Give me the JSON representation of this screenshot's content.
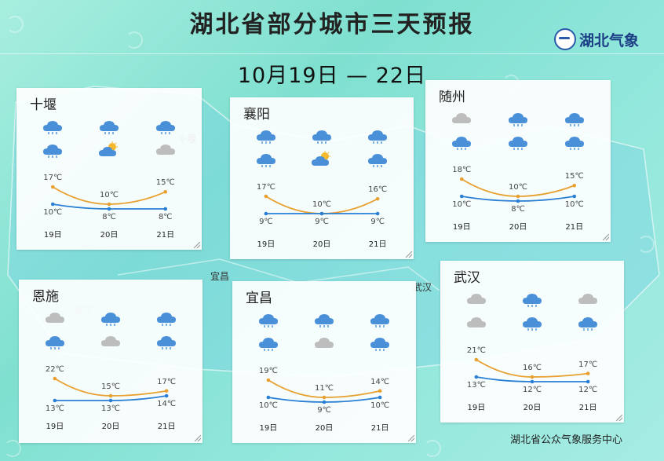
{
  "header": {
    "title": "湖北省部分城市三天预报",
    "date_range": "10月19日 — 22日",
    "logo_text": "湖北气象"
  },
  "map_labels": [
    "十堰",
    "恩施",
    "宜昌",
    "武汉"
  ],
  "footer": {
    "source": "湖北省公众气象服务中心"
  },
  "cities": [
    {
      "name": "十堰",
      "days": [
        "19日",
        "20日",
        "21日"
      ],
      "icons_row1": [
        "rain-cloud-icon",
        "rain-cloud-icon",
        "rain-cloud-icon"
      ],
      "icons_row2": [
        "rain-cloud-icon",
        "partly-sunny-icon",
        "cloudy-icon"
      ],
      "highs": [
        "17℃",
        "10℃",
        "15℃"
      ],
      "lows": [
        "10℃",
        "8℃",
        "8℃"
      ],
      "high_values": [
        17,
        10,
        15
      ],
      "low_values": [
        10,
        8,
        8
      ]
    },
    {
      "name": "襄阳",
      "days": [
        "19日",
        "20日",
        "21日"
      ],
      "icons_row1": [
        "rain-cloud-icon",
        "rain-cloud-icon",
        "rain-cloud-icon"
      ],
      "icons_row2": [
        "rain-cloud-icon",
        "partly-sunny-icon",
        "rain-cloud-icon"
      ],
      "highs": [
        "17℃",
        "10℃",
        "16℃"
      ],
      "lows": [
        "9℃",
        "9℃",
        "9℃"
      ],
      "high_values": [
        17,
        10,
        16
      ],
      "low_values": [
        9,
        9,
        9
      ]
    },
    {
      "name": "随州",
      "days": [
        "19日",
        "20日",
        "21日"
      ],
      "icons_row1": [
        "cloudy-icon",
        "rain-cloud-icon",
        "rain-cloud-icon"
      ],
      "icons_row2": [
        "rain-cloud-icon",
        "rain-cloud-icon",
        "rain-cloud-icon"
      ],
      "highs": [
        "18℃",
        "10℃",
        "15℃"
      ],
      "lows": [
        "10℃",
        "8℃",
        "10℃"
      ],
      "high_values": [
        18,
        10,
        15
      ],
      "low_values": [
        10,
        8,
        10
      ]
    },
    {
      "name": "恩施",
      "days": [
        "19日",
        "20日",
        "21日"
      ],
      "icons_row1": [
        "cloudy-icon",
        "rain-cloud-icon",
        "rain-cloud-icon"
      ],
      "icons_row2": [
        "rain-cloud-icon",
        "cloudy-icon",
        "rain-cloud-icon"
      ],
      "highs": [
        "22℃",
        "15℃",
        "17℃"
      ],
      "lows": [
        "13℃",
        "13℃",
        "14℃"
      ],
      "high_values": [
        22,
        15,
        17
      ],
      "low_values": [
        13,
        13,
        14
      ]
    },
    {
      "name": "宜昌",
      "days": [
        "19日",
        "20日",
        "21日"
      ],
      "icons_row1": [
        "rain-cloud-icon",
        "rain-cloud-icon",
        "rain-cloud-icon"
      ],
      "icons_row2": [
        "rain-cloud-icon",
        "cloudy-icon",
        "rain-cloud-icon"
      ],
      "highs": [
        "19℃",
        "11℃",
        "14℃"
      ],
      "lows": [
        "10℃",
        "9℃",
        "10℃"
      ],
      "high_values": [
        19,
        11,
        14
      ],
      "low_values": [
        10,
        9,
        10
      ]
    },
    {
      "name": "武汉",
      "days": [
        "19日",
        "20日",
        "21日"
      ],
      "icons_row1": [
        "cloudy-icon",
        "rain-cloud-icon",
        "cloudy-icon"
      ],
      "icons_row2": [
        "cloudy-icon",
        "rain-cloud-icon",
        "rain-cloud-icon"
      ],
      "highs": [
        "21℃",
        "16℃",
        "17℃"
      ],
      "lows": [
        "13℃",
        "12℃",
        "12℃"
      ],
      "high_values": [
        21,
        16,
        17
      ],
      "low_values": [
        13,
        12,
        12
      ]
    }
  ],
  "colors": {
    "high_line": "#e8a030",
    "low_line": "#2a7fd4",
    "rain_cloud": "#4a90d9",
    "cloudy": "#bdbdbd",
    "sun": "#f5b82e"
  }
}
